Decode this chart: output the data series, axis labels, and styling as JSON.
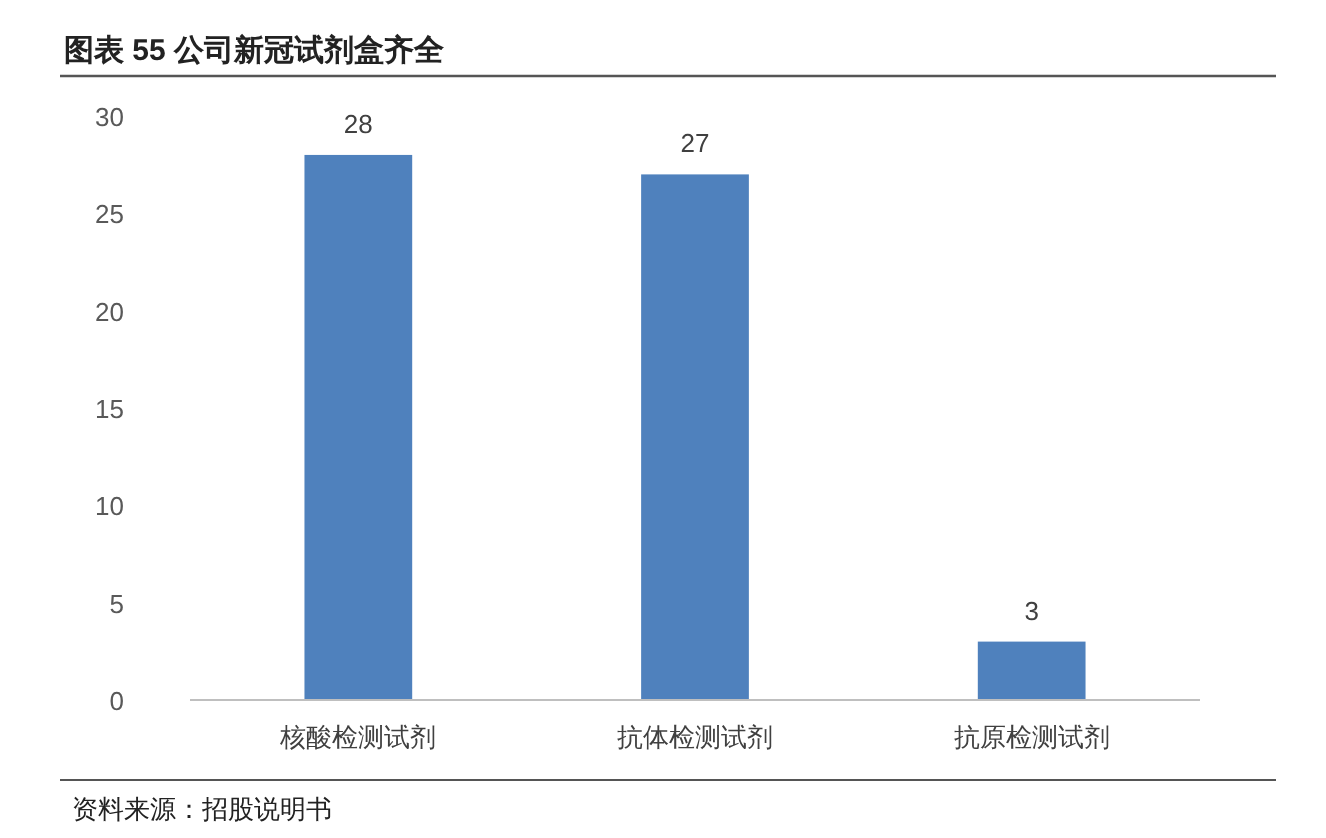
{
  "chart_data": {
    "type": "bar",
    "title": "图表 55  公司新冠试剂盒齐全",
    "categories": [
      "核酸检测试剂",
      "抗体检测试剂",
      "抗原检测试剂"
    ],
    "values": [
      28,
      27,
      3
    ],
    "color": "#4f81bd",
    "ylim": [
      0,
      30
    ],
    "yticks": [
      0,
      5,
      10,
      15,
      20,
      25,
      30
    ],
    "data_labels": true,
    "annotations": [
      "资料来源：招股说明书"
    ]
  }
}
